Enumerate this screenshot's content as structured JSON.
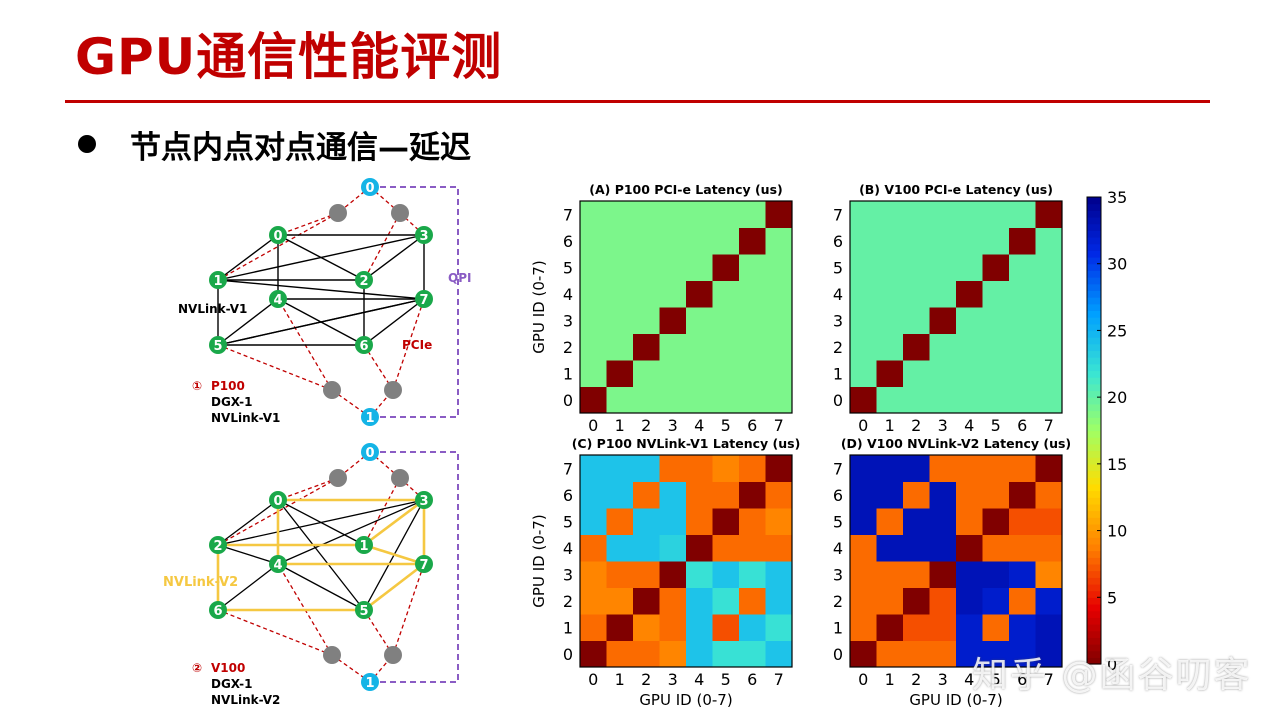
{
  "slide": {
    "title": "GPU通信性能评测",
    "bullet": "节点内点对点通信—延迟"
  },
  "colors": {
    "title_red": "#c00000",
    "green_node": "#1aa84a",
    "cpu_node": "#14b4e6",
    "switch_node": "#808080",
    "pcie_line": "#c00000",
    "qpi_line": "#8a5cc4",
    "nvlink_v1_line": "#000000",
    "nvlink_v2_line": "#f5c842"
  },
  "topologies": [
    {
      "id": "p100",
      "cpu_top": "0",
      "cpu_bottom": "1",
      "gpu_labels": [
        "0",
        "1",
        "2",
        "3",
        "4",
        "5",
        "6",
        "7"
      ],
      "nvlink_label": "NVLink-V1",
      "pcie_label": "PCIe",
      "qpi_label": "QPI",
      "caption_num": "①",
      "caption_model": "P100",
      "caption_system": "DGX-1",
      "caption_link": "NVLink-V1"
    },
    {
      "id": "v100",
      "cpu_top": "0",
      "cpu_bottom": "1",
      "gpu_labels": [
        "0",
        "2",
        "1",
        "3",
        "4",
        "6",
        "5",
        "7"
      ],
      "nvlink_label": "NVLink-V2",
      "caption_num": "②",
      "caption_model": "V100",
      "caption_system": "DGX-1",
      "caption_link": "NVLink-V2"
    }
  ],
  "chart_data": [
    {
      "type": "heatmap",
      "title": "(A) P100 PCI-e Latency (us)",
      "xlabel": "",
      "ylabel": "GPU ID (0-7)",
      "x": [
        "0",
        "1",
        "2",
        "3",
        "4",
        "5",
        "6",
        "7"
      ],
      "y": [
        "0",
        "1",
        "2",
        "3",
        "4",
        "5",
        "6",
        "7"
      ],
      "z": [
        [
          0,
          19,
          19,
          19,
          19,
          19,
          19,
          19
        ],
        [
          19,
          0,
          19,
          19,
          19,
          19,
          19,
          19
        ],
        [
          19,
          19,
          0,
          19,
          19,
          19,
          19,
          19
        ],
        [
          19,
          19,
          19,
          0,
          19,
          19,
          19,
          19
        ],
        [
          19,
          19,
          19,
          19,
          0,
          19,
          19,
          19
        ],
        [
          19,
          19,
          19,
          19,
          19,
          0,
          19,
          19
        ],
        [
          19,
          19,
          19,
          19,
          19,
          19,
          0,
          19
        ],
        [
          19,
          19,
          19,
          19,
          19,
          19,
          19,
          0
        ]
      ],
      "zlim": [
        0,
        35
      ]
    },
    {
      "type": "heatmap",
      "title": "(B) V100 PCI-e Latency (us)",
      "xlabel": "",
      "ylabel": "",
      "x": [
        "0",
        "1",
        "2",
        "3",
        "4",
        "5",
        "6",
        "7"
      ],
      "y": [
        "0",
        "1",
        "2",
        "3",
        "4",
        "5",
        "6",
        "7"
      ],
      "z": [
        [
          0,
          20,
          20,
          20,
          20,
          20,
          20,
          20
        ],
        [
          20,
          0,
          20,
          20,
          20,
          20,
          20,
          20
        ],
        [
          20,
          20,
          0,
          20,
          20,
          20,
          20,
          20
        ],
        [
          20,
          20,
          20,
          0,
          20,
          20,
          20,
          20
        ],
        [
          20,
          20,
          20,
          20,
          0,
          20,
          20,
          20
        ],
        [
          20,
          20,
          20,
          20,
          20,
          0,
          20,
          20
        ],
        [
          20,
          20,
          20,
          20,
          20,
          20,
          0,
          20
        ],
        [
          20,
          20,
          20,
          20,
          20,
          20,
          20,
          0
        ]
      ],
      "zlim": [
        0,
        35
      ]
    },
    {
      "type": "heatmap",
      "title": "(C) P100 NVLink-V1 Latency (us)",
      "xlabel": "GPU ID (0-7)",
      "ylabel": "GPU ID (0-7)",
      "x": [
        "0",
        "1",
        "2",
        "3",
        "4",
        "5",
        "6",
        "7"
      ],
      "y": [
        "0",
        "1",
        "2",
        "3",
        "4",
        "5",
        "6",
        "7"
      ],
      "z": [
        [
          0,
          8,
          8,
          9,
          24,
          22,
          22,
          24
        ],
        [
          8,
          0,
          9,
          8,
          24,
          7,
          24,
          22
        ],
        [
          9,
          9,
          0,
          8,
          24,
          22,
          8,
          24
        ],
        [
          9,
          8,
          8,
          0,
          22,
          24,
          22,
          24
        ],
        [
          8,
          24,
          24,
          23,
          0,
          8,
          8,
          8
        ],
        [
          24,
          8,
          24,
          24,
          8,
          0,
          8,
          9
        ],
        [
          24,
          24,
          8,
          24,
          8,
          8,
          0,
          8
        ],
        [
          24,
          24,
          24,
          8,
          8,
          9,
          8,
          0
        ]
      ],
      "zlim": [
        0,
        35
      ]
    },
    {
      "type": "heatmap",
      "title": "(D) V100 NVLink-V2 Latency (us)",
      "xlabel": "GPU ID (0-7)",
      "ylabel": "",
      "x": [
        "0",
        "1",
        "2",
        "3",
        "4",
        "5",
        "6",
        "7"
      ],
      "y": [
        "0",
        "1",
        "2",
        "3",
        "4",
        "5",
        "6",
        "7"
      ],
      "z": [
        [
          0,
          8,
          8,
          8,
          32,
          32,
          32,
          33
        ],
        [
          8,
          0,
          7,
          7,
          32,
          8,
          32,
          33
        ],
        [
          8,
          8,
          0,
          7,
          33,
          32,
          8,
          32
        ],
        [
          8,
          8,
          8,
          0,
          33,
          33,
          32,
          9
        ],
        [
          8,
          33,
          33,
          33,
          0,
          8,
          8,
          8
        ],
        [
          33,
          8,
          33,
          33,
          8,
          0,
          7,
          7
        ],
        [
          33,
          33,
          8,
          33,
          8,
          8,
          0,
          8
        ],
        [
          33,
          33,
          33,
          8,
          8,
          8,
          8,
          0
        ]
      ],
      "zlim": [
        0,
        35
      ]
    }
  ],
  "colorbar": {
    "ticks": [
      "0",
      "5",
      "10",
      "15",
      "20",
      "25",
      "30",
      "35"
    ],
    "min": 0,
    "max": 35
  },
  "watermark": "知乎 @函谷叨客"
}
